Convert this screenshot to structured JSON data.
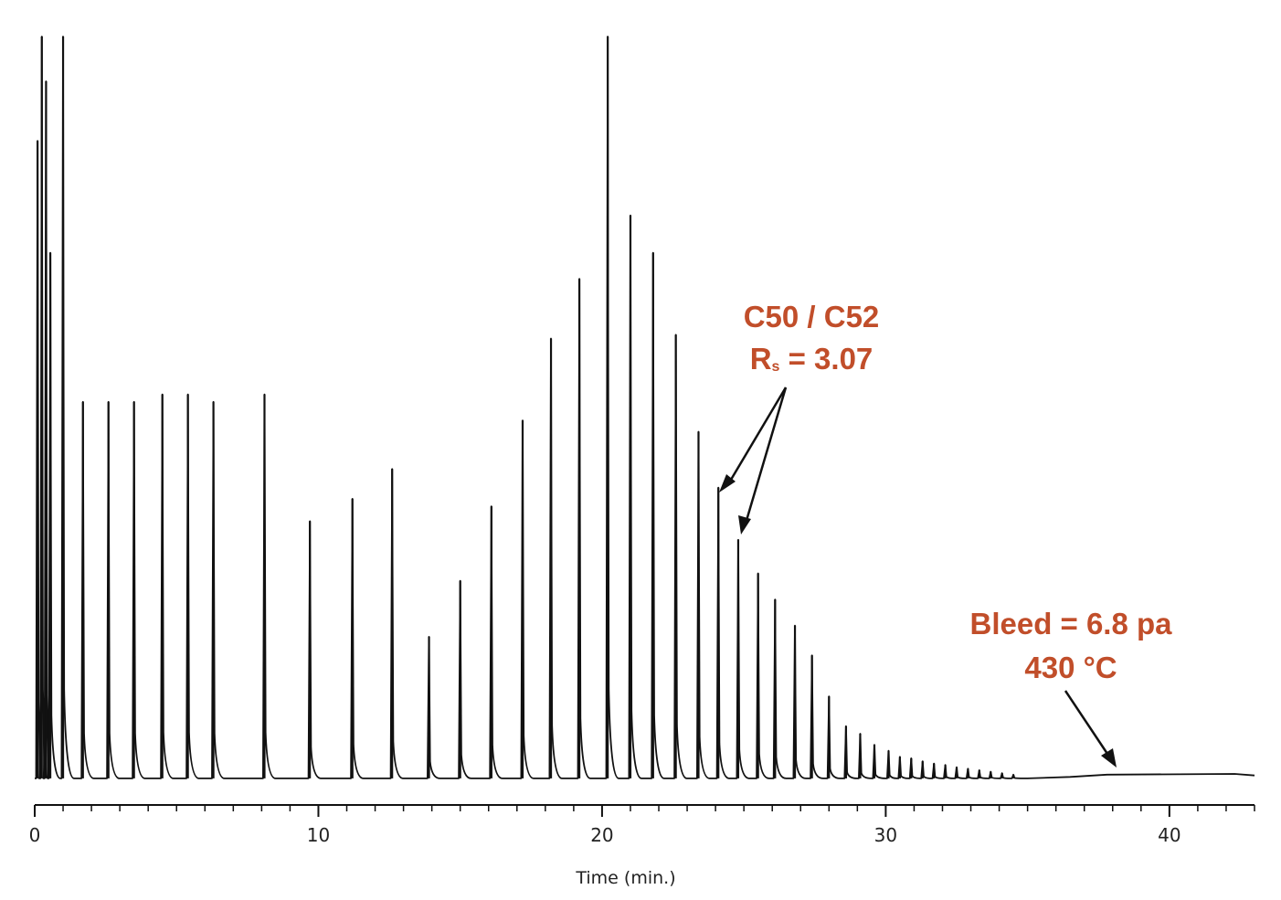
{
  "chart_data": {
    "type": "line",
    "title": "",
    "xlabel": "Time (min.)",
    "ylabel": "",
    "xlim": [
      0,
      43
    ],
    "ylim": [
      0,
      100
    ],
    "x_ticks": [
      "0",
      "10",
      "20",
      "30",
      "40"
    ],
    "x_tick_values": [
      0,
      10,
      20,
      30,
      40
    ],
    "grid": false,
    "baseline": 0.5,
    "peaks": [
      {
        "t": 0.1,
        "h": 86
      },
      {
        "t": 0.25,
        "h": 100
      },
      {
        "t": 0.4,
        "h": 94
      },
      {
        "t": 0.55,
        "h": 71
      },
      {
        "t": 1.0,
        "h": 100
      },
      {
        "t": 1.7,
        "h": 51
      },
      {
        "t": 2.6,
        "h": 51
      },
      {
        "t": 3.5,
        "h": 51
      },
      {
        "t": 4.5,
        "h": 52
      },
      {
        "t": 5.4,
        "h": 52
      },
      {
        "t": 6.3,
        "h": 51
      },
      {
        "t": 8.1,
        "h": 52
      },
      {
        "t": 9.7,
        "h": 35
      },
      {
        "t": 11.2,
        "h": 38
      },
      {
        "t": 12.6,
        "h": 42
      },
      {
        "t": 13.9,
        "h": 19.5
      },
      {
        "t": 15.0,
        "h": 27
      },
      {
        "t": 16.1,
        "h": 37
      },
      {
        "t": 17.2,
        "h": 48.5
      },
      {
        "t": 18.2,
        "h": 59.5
      },
      {
        "t": 19.2,
        "h": 67.5
      },
      {
        "t": 20.2,
        "h": 100
      },
      {
        "t": 21.0,
        "h": 76
      },
      {
        "t": 21.8,
        "h": 71
      },
      {
        "t": 22.6,
        "h": 60
      },
      {
        "t": 23.4,
        "h": 47
      },
      {
        "t": 24.1,
        "h": 39.5
      },
      {
        "t": 24.8,
        "h": 32.5
      },
      {
        "t": 25.5,
        "h": 28
      },
      {
        "t": 26.1,
        "h": 24.5
      },
      {
        "t": 26.8,
        "h": 21
      },
      {
        "t": 27.4,
        "h": 17
      },
      {
        "t": 28.0,
        "h": 11.5
      },
      {
        "t": 28.6,
        "h": 7.5
      },
      {
        "t": 29.1,
        "h": 6.5
      },
      {
        "t": 29.6,
        "h": 5
      },
      {
        "t": 30.1,
        "h": 4.2
      },
      {
        "t": 30.5,
        "h": 3.4
      },
      {
        "t": 30.9,
        "h": 3.2
      },
      {
        "t": 31.3,
        "h": 2.8
      },
      {
        "t": 31.7,
        "h": 2.5
      },
      {
        "t": 32.1,
        "h": 2.3
      },
      {
        "t": 32.5,
        "h": 2
      },
      {
        "t": 32.9,
        "h": 1.8
      },
      {
        "t": 33.3,
        "h": 1.6
      },
      {
        "t": 33.7,
        "h": 1.4
      },
      {
        "t": 34.1,
        "h": 1.2
      },
      {
        "t": 34.5,
        "h": 1.0
      }
    ],
    "bleed_profile": [
      [
        35.0,
        0.5
      ],
      [
        36.5,
        0.7
      ],
      [
        37.8,
        1.0
      ],
      [
        42.3,
        1.1
      ],
      [
        43.0,
        0.9
      ]
    ],
    "annotations": [
      {
        "lines": [
          "C50 / C52",
          "Rs = 3.07"
        ],
        "color": "#c14e2a",
        "target_times": [
          24.1,
          24.8
        ]
      },
      {
        "lines": [
          "Bleed = 6.8 pa",
          "430 °C"
        ],
        "color": "#c14e2a",
        "target_times": [
          38.0
        ]
      }
    ]
  }
}
